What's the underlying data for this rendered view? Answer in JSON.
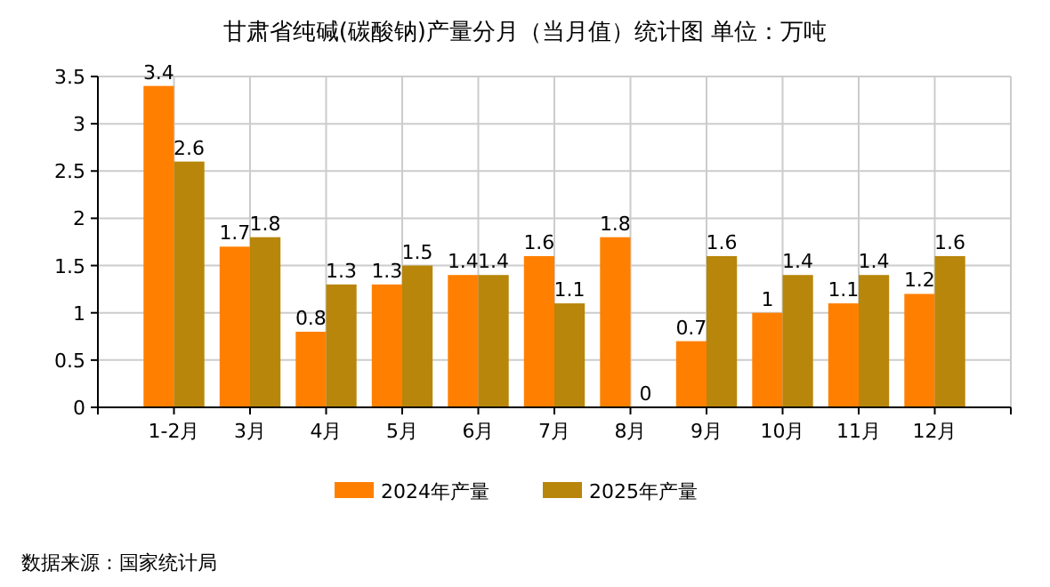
{
  "chart_data": {
    "type": "bar",
    "title": "甘肃省纯碱(碳酸钠)产量分月（当月值）统计图 单位：万吨",
    "categories": [
      "1-2月",
      "3月",
      "4月",
      "5月",
      "6月",
      "7月",
      "8月",
      "9月",
      "10月",
      "11月",
      "12月"
    ],
    "series": [
      {
        "name": "2024年产量",
        "color": "#ff8000",
        "values": [
          3.4,
          1.7,
          0.8,
          1.3,
          1.4,
          1.6,
          1.8,
          0.7,
          1,
          1.1,
          1.2
        ]
      },
      {
        "name": "2025年产量",
        "color": "#b8860b",
        "values": [
          2.6,
          1.8,
          1.3,
          1.5,
          1.4,
          1.1,
          0,
          1.6,
          1.4,
          1.4,
          1.6
        ]
      }
    ],
    "ylim": [
      0,
      3.5
    ],
    "yticks": [
      0,
      0.5,
      1,
      1.5,
      2,
      2.5,
      3,
      3.5
    ],
    "grid": true,
    "legend": "bottom",
    "data_labels": true,
    "annotations": [
      "数据来源：国家统计局"
    ]
  }
}
